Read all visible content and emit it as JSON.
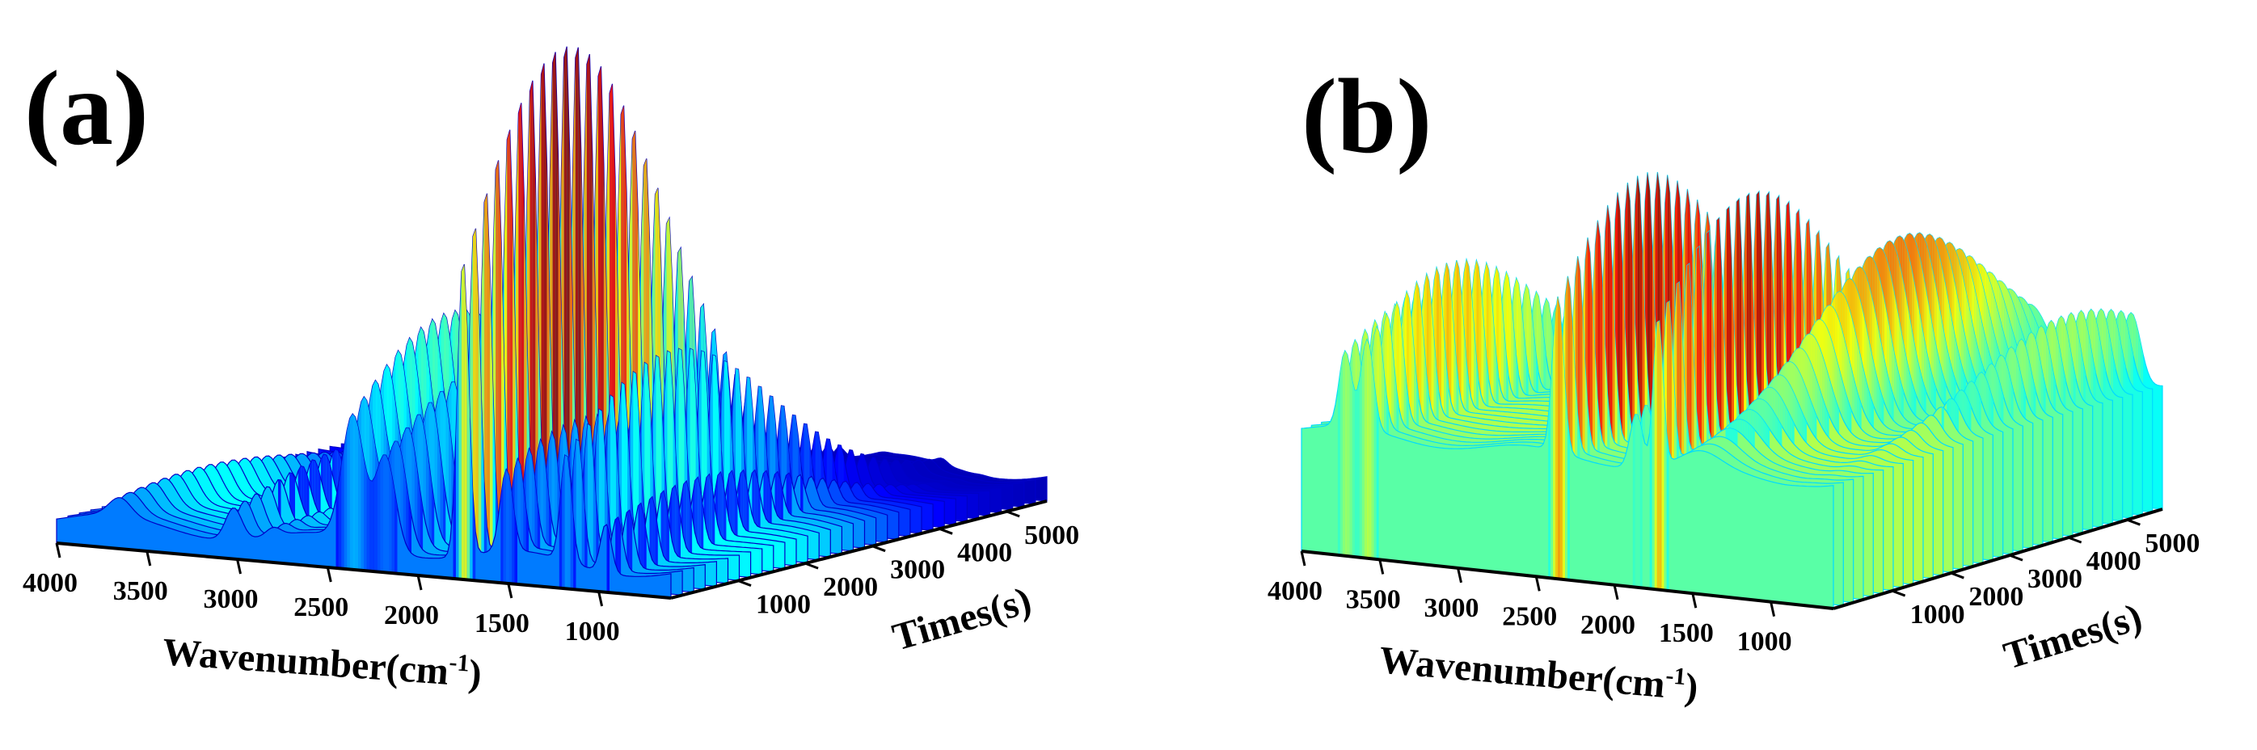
{
  "chart_data": [
    {
      "type": "3d-surface",
      "panel_label": "(a)",
      "xlabel": "Wavenumber(cm",
      "xlabel_sup": "-1",
      "xlabel_close": ")",
      "ylabel": "Times(s)",
      "x_ticks": [
        "4000",
        "3500",
        "3000",
        "2500",
        "2000",
        "1500",
        "1000"
      ],
      "y_ticks": [
        "1000",
        "2000",
        "3000",
        "4000",
        "5000"
      ],
      "xlim": [
        4000,
        600
      ],
      "ylim": [
        0,
        5600
      ],
      "colormap": "jet",
      "base_level": 0.05,
      "intensity_max": 1.0,
      "peaks": [
        {
          "wavenumber": 3650,
          "time": 1800,
          "height": 0.12,
          "width": 60
        },
        {
          "wavenumber": 3020,
          "time": 1600,
          "height": 0.16,
          "width": 45
        },
        {
          "wavenumber": 2800,
          "time": 1700,
          "height": 0.08,
          "width": 40
        },
        {
          "wavenumber": 2360,
          "time": 1500,
          "height": 0.45,
          "width": 60
        },
        {
          "wavenumber": 2180,
          "time": 1500,
          "height": 0.35,
          "width": 55
        },
        {
          "wavenumber": 1750,
          "time": 1500,
          "height": 1.0,
          "width": 30
        },
        {
          "wavenumber": 1510,
          "time": 1300,
          "height": 0.28,
          "width": 35
        },
        {
          "wavenumber": 1180,
          "time": 1600,
          "height": 0.42,
          "width": 30
        },
        {
          "wavenumber": 960,
          "time": 1200,
          "height": 0.18,
          "width": 30
        }
      ]
    },
    {
      "type": "3d-surface",
      "panel_label": "(b)",
      "xlabel": "Wavenumber(cm",
      "xlabel_sup": "-1",
      "xlabel_close": ")",
      "ylabel": "Times(s)",
      "x_ticks": [
        "4000",
        "3500",
        "3000",
        "2500",
        "2000",
        "1500",
        "1000"
      ],
      "y_ticks": [
        "1000",
        "2000",
        "3000",
        "4000",
        "5000"
      ],
      "xlim": [
        4000,
        600
      ],
      "ylim": [
        0,
        5600
      ],
      "colormap": "jet",
      "base_level": 0.32,
      "intensity_max": 1.0,
      "peaks": [
        {
          "wavenumber": 3720,
          "time": 1400,
          "height": 0.62,
          "width": 40
        },
        {
          "wavenumber": 3580,
          "time": 1500,
          "height": 0.7,
          "width": 40
        },
        {
          "wavenumber": 2360,
          "time": 1500,
          "height": 0.98,
          "width": 35
        },
        {
          "wavenumber": 1860,
          "time": 1500,
          "height": 0.55,
          "width": 40
        },
        {
          "wavenumber": 1720,
          "time": 1500,
          "height": 0.95,
          "width": 30
        },
        {
          "wavenumber": 1450,
          "time": 3400,
          "height": 0.78,
          "width": 120
        },
        {
          "wavenumber": 800,
          "time": 4700,
          "height": 0.55,
          "width": 60
        }
      ]
    }
  ]
}
